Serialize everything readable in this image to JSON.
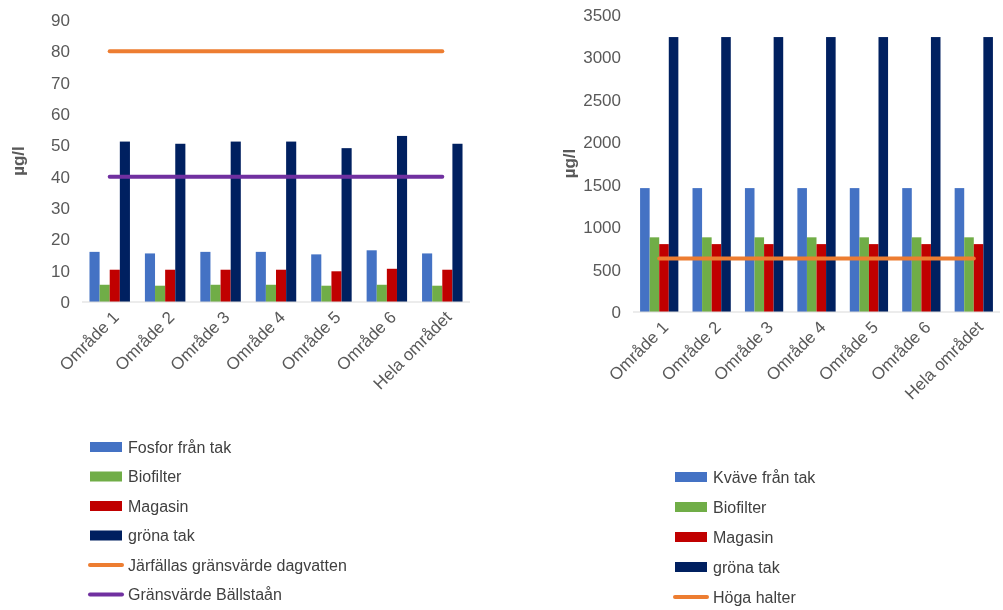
{
  "chart_data": [
    {
      "type": "bar",
      "ylabel": "µg/l",
      "categories": [
        "Område 1",
        "Område 2",
        "Område 3",
        "Område 4",
        "Område 5",
        "Område 6",
        "Hela området"
      ],
      "ylim": [
        0,
        90
      ],
      "yticks": [
        0,
        10,
        20,
        30,
        40,
        50,
        60,
        70,
        80,
        90
      ],
      "grid": false,
      "legend": "bottom",
      "series": [
        {
          "name": "Fosfor från tak",
          "color": "#4472c4",
          "values": [
            16,
            15.5,
            16,
            16,
            15.2,
            16.5,
            15.5
          ]
        },
        {
          "name": "Biofilter",
          "color": "#70ad47",
          "values": [
            5.5,
            5.2,
            5.5,
            5.5,
            5.2,
            5.5,
            5.2
          ]
        },
        {
          "name": "Magasin",
          "color": "#c00000",
          "values": [
            10.3,
            10.3,
            10.3,
            10.3,
            9.8,
            10.6,
            10.3
          ]
        },
        {
          "name": "gröna tak",
          "color": "#002060",
          "values": [
            51.2,
            50.5,
            51.2,
            51.2,
            49.1,
            53,
            50.5
          ]
        },
        {
          "name": "Järfällas gränsvärde dagvatten",
          "type": "line",
          "color": "#ed7d31",
          "values": [
            80,
            80,
            80,
            80,
            80,
            80,
            80
          ]
        },
        {
          "name": "Gränsvärde Bällstaån",
          "type": "line",
          "color": "#7030a0",
          "values": [
            40,
            40,
            40,
            40,
            40,
            40,
            40
          ]
        }
      ]
    },
    {
      "type": "bar",
      "ylabel": "µg/l",
      "categories": [
        "Område 1",
        "Område 2",
        "Område 3",
        "Område 4",
        "Område 5",
        "Område 6",
        "Hela området"
      ],
      "ylim": [
        0,
        3500
      ],
      "yticks": [
        0,
        500,
        1000,
        1500,
        2000,
        2500,
        3000,
        3500
      ],
      "grid": false,
      "legend": "bottom",
      "series": [
        {
          "name": "Kväve från tak",
          "color": "#4472c4",
          "values": [
            1460,
            1460,
            1460,
            1460,
            1460,
            1460,
            1460
          ]
        },
        {
          "name": "Biofilter",
          "color": "#70ad47",
          "values": [
            880,
            880,
            880,
            880,
            880,
            880,
            880
          ]
        },
        {
          "name": "Magasin",
          "color": "#c00000",
          "values": [
            800,
            800,
            800,
            800,
            800,
            800,
            800
          ]
        },
        {
          "name": "gröna tak",
          "color": "#002060",
          "values": [
            3240,
            3240,
            3240,
            3240,
            3240,
            3240,
            3240
          ]
        },
        {
          "name": "Höga halter",
          "type": "line",
          "color": "#ed7d31",
          "values": [
            630,
            630,
            630,
            630,
            630,
            630,
            630
          ]
        }
      ]
    }
  ]
}
